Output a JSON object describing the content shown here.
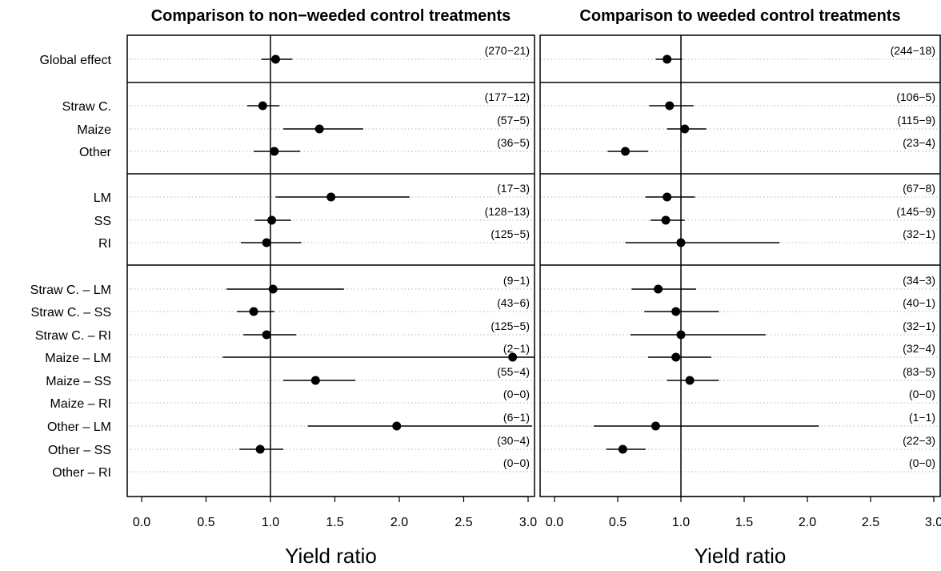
{
  "chart_data": {
    "type": "forest",
    "xlabel": "Yield ratio",
    "xlim": [
      -0.1,
      3.1
    ],
    "xticks": [
      0.0,
      0.5,
      1.0,
      1.5,
      2.0,
      2.5,
      3.0
    ],
    "xtick_labels": [
      "0.0",
      "0.5",
      "1.0",
      "1.5",
      "2.0",
      "2.5",
      "3.0"
    ],
    "reference_line": 1.0,
    "groups": [
      [
        "Global effect"
      ],
      [
        "Straw C.",
        "Maize",
        "Other"
      ],
      [
        "LM",
        "SS",
        "RI"
      ],
      [
        "Straw C. – LM",
        "Straw C. – SS",
        "Straw C. – RI",
        "Maize – LM",
        "Maize – SS",
        "Maize – RI",
        "Other – LM",
        "Other – SS",
        "Other – RI"
      ]
    ],
    "panels": [
      {
        "title": "Comparison to non−weeded control treatments",
        "rows": [
          {
            "estimate": 1.04,
            "lower": 0.93,
            "upper": 1.17,
            "n": "(270−21)"
          },
          {
            "estimate": 0.94,
            "lower": 0.82,
            "upper": 1.07,
            "n": "(177−12)"
          },
          {
            "estimate": 1.38,
            "lower": 1.1,
            "upper": 1.72,
            "n": "(57−5)"
          },
          {
            "estimate": 1.03,
            "lower": 0.87,
            "upper": 1.23,
            "n": "(36−5)"
          },
          {
            "estimate": 1.47,
            "lower": 1.04,
            "upper": 2.08,
            "n": "(17−3)"
          },
          {
            "estimate": 1.01,
            "lower": 0.88,
            "upper": 1.16,
            "n": "(128−13)"
          },
          {
            "estimate": 0.97,
            "lower": 0.77,
            "upper": 1.24,
            "n": "(125−5)"
          },
          {
            "estimate": 1.02,
            "lower": 0.66,
            "upper": 1.57,
            "n": "(9−1)"
          },
          {
            "estimate": 0.87,
            "lower": 0.74,
            "upper": 1.03,
            "n": "(43−6)"
          },
          {
            "estimate": 0.97,
            "lower": 0.79,
            "upper": 1.2,
            "n": "(125−5)"
          },
          {
            "estimate": 2.88,
            "lower": 0.63,
            "upper": 3.1,
            "n": "(2−1)"
          },
          {
            "estimate": 1.35,
            "lower": 1.1,
            "upper": 1.66,
            "n": "(55−4)"
          },
          {
            "estimate": null,
            "lower": null,
            "upper": null,
            "n": "(0−0)"
          },
          {
            "estimate": 1.98,
            "lower": 1.29,
            "upper": 3.03,
            "n": "(6−1)"
          },
          {
            "estimate": 0.92,
            "lower": 0.76,
            "upper": 1.1,
            "n": "(30−4)"
          },
          {
            "estimate": null,
            "lower": null,
            "upper": null,
            "n": "(0−0)"
          }
        ]
      },
      {
        "title": "Comparison to weeded control treatments",
        "rows": [
          {
            "estimate": 0.89,
            "lower": 0.8,
            "upper": 1.01,
            "n": "(244−18)"
          },
          {
            "estimate": 0.91,
            "lower": 0.75,
            "upper": 1.1,
            "n": "(106−5)"
          },
          {
            "estimate": 1.03,
            "lower": 0.89,
            "upper": 1.2,
            "n": "(115−9)"
          },
          {
            "estimate": 0.56,
            "lower": 0.42,
            "upper": 0.74,
            "n": "(23−4)"
          },
          {
            "estimate": 0.89,
            "lower": 0.72,
            "upper": 1.11,
            "n": "(67−8)"
          },
          {
            "estimate": 0.88,
            "lower": 0.76,
            "upper": 1.03,
            "n": "(145−9)"
          },
          {
            "estimate": 1.0,
            "lower": 0.56,
            "upper": 1.78,
            "n": "(32−1)"
          },
          {
            "estimate": 0.82,
            "lower": 0.61,
            "upper": 1.12,
            "n": "(34−3)"
          },
          {
            "estimate": 0.96,
            "lower": 0.71,
            "upper": 1.3,
            "n": "(40−1)"
          },
          {
            "estimate": 1.0,
            "lower": 0.6,
            "upper": 1.67,
            "n": "(32−1)"
          },
          {
            "estimate": 0.96,
            "lower": 0.74,
            "upper": 1.24,
            "n": "(32−4)"
          },
          {
            "estimate": 1.07,
            "lower": 0.89,
            "upper": 1.3,
            "n": "(83−5)"
          },
          {
            "estimate": null,
            "lower": null,
            "upper": null,
            "n": "(0−0)"
          },
          {
            "estimate": 0.8,
            "lower": 0.31,
            "upper": 2.09,
            "n": "(1−1)"
          },
          {
            "estimate": 0.54,
            "lower": 0.41,
            "upper": 0.72,
            "n": "(22−3)"
          },
          {
            "estimate": null,
            "lower": null,
            "upper": null,
            "n": "(0−0)"
          }
        ]
      }
    ],
    "colors": {
      "point": "#000000",
      "line": "#000000",
      "guide": "#b4b4b4"
    }
  }
}
